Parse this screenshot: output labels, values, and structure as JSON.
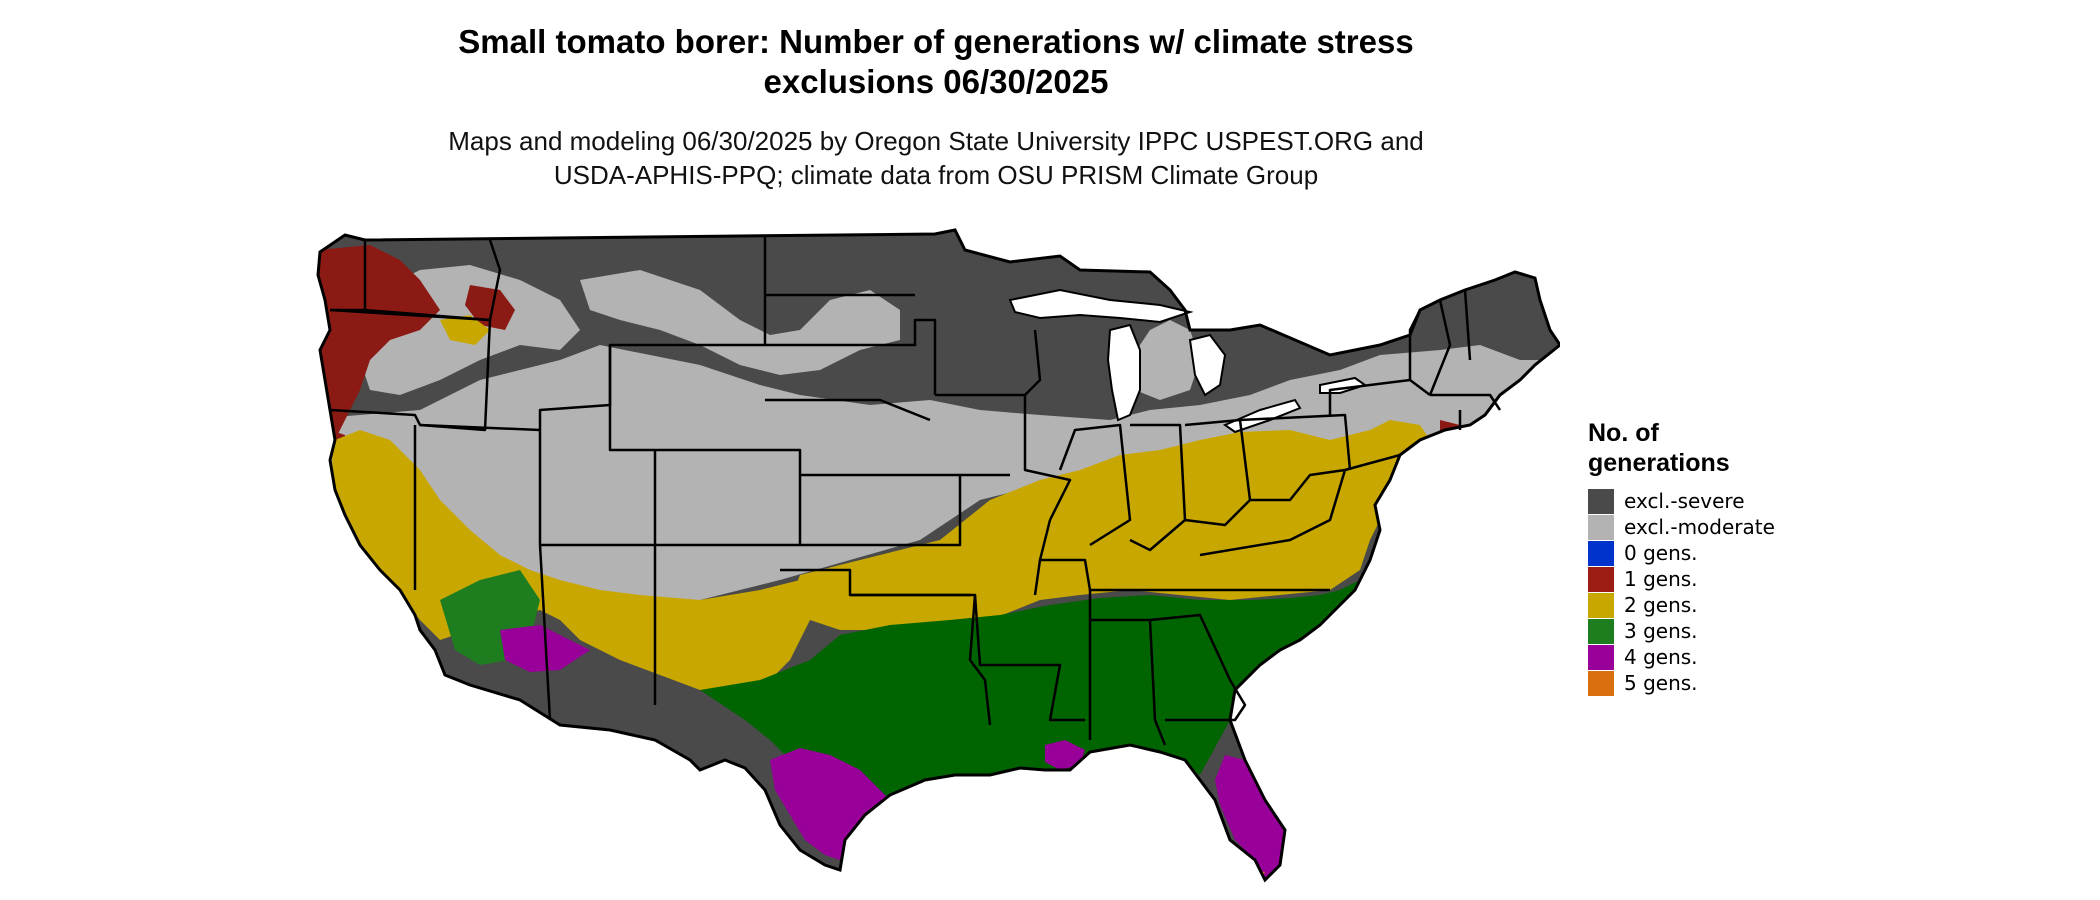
{
  "title_line1": "Small tomato borer: Number of generations w/ climate stress",
  "title_line2": "exclusions 06/30/2025",
  "subtitle_line1": "Maps and modeling 06/30/2025 by Oregon State University IPPC USPEST.ORG and",
  "subtitle_line2": "USDA-APHIS-PPQ; climate data from OSU PRISM Climate Group",
  "legend": {
    "title_line1": "No. of",
    "title_line2": "generations",
    "items": [
      {
        "label": "excl.-severe",
        "color": "#4a4a4a"
      },
      {
        "label": "excl.-moderate",
        "color": "#b3b3b3"
      },
      {
        "label": "0 gens.",
        "color": "#0033cc"
      },
      {
        "label": "1 gens.",
        "color": "#9b1c13"
      },
      {
        "label": "2 gens.",
        "color": "#c8a800"
      },
      {
        "label": "3 gens.",
        "color": "#1e7d1e"
      },
      {
        "label": "4 gens.",
        "color": "#990099"
      },
      {
        "label": "5 gens.",
        "color": "#d97010"
      }
    ]
  },
  "map_colors": {
    "severe": "#4a4a4a",
    "moderate": "#b3b3b3",
    "one_gen": "#8c1a14",
    "two_gens": "#c8a800",
    "three_gens": "#006400",
    "four_gens": "#990099",
    "five_gens": "#d97010",
    "lakes": "#ffffff",
    "borders": "#000000"
  }
}
